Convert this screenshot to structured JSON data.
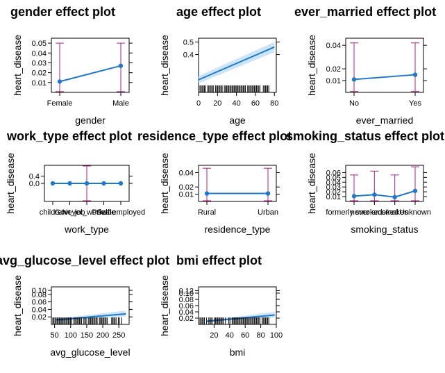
{
  "figure": {
    "ylabel": "heart_disease",
    "colors": {
      "line": "#1f78c9",
      "band": "#cce5fa",
      "error_bar": "#b0207f",
      "rug": "#000000"
    }
  },
  "chart_data": [
    {
      "type": "line",
      "title": "gender effect plot",
      "xlabel": "gender",
      "ylabel": "heart_disease",
      "x_scale": "categorical",
      "categories": [
        "Female",
        "Male"
      ],
      "values": [
        0.011,
        0.027
      ],
      "ci_low": [
        0.0008,
        0.0008
      ],
      "ci_high": [
        0.05,
        0.05
      ],
      "uncertainty": "error_bars",
      "yticks": [
        "0.01",
        "0.02",
        "0.03",
        "0.04",
        "0.05"
      ],
      "ylim": [
        0,
        0.055
      ]
    },
    {
      "type": "line",
      "title": "age effect plot",
      "xlabel": "age",
      "ylabel": "heart_disease",
      "x_scale": "continuous",
      "x": [
        0,
        80
      ],
      "values": [
        0.2,
        0.46
      ],
      "ci_low": [
        0.17,
        0.42
      ],
      "ci_high": [
        0.23,
        0.5
      ],
      "uncertainty": "band",
      "rug": true,
      "xlim": [
        0,
        82
      ],
      "xticks": [
        "0",
        "20",
        "40",
        "60",
        "80"
      ],
      "yticks": [
        "0.4",
        "0.5"
      ],
      "ylim": [
        0.1,
        0.53
      ]
    },
    {
      "type": "line",
      "title": "ever_married effect plot",
      "xlabel": "ever_married",
      "ylabel": "heart_disease",
      "x_scale": "categorical",
      "categories": [
        "No",
        "Yes"
      ],
      "values": [
        0.011,
        0.015
      ],
      "ci_low": [
        0.0008,
        0.0008
      ],
      "ci_high": [
        0.042,
        0.042
      ],
      "uncertainty": "error_bars",
      "yticks": [
        "0.01",
        "0.02",
        "0.04"
      ],
      "ylim": [
        0,
        0.046
      ]
    },
    {
      "type": "line",
      "title": "work_type effect plot",
      "xlabel": "work_type",
      "ylabel": "heart_disease",
      "x_scale": "categorical",
      "categories": [
        "children",
        "Govt_job",
        "Never_worked",
        "Private",
        "Self-employed"
      ],
      "values": [
        0.0,
        0.0,
        0.0,
        0.0,
        0.0
      ],
      "ci_low": [
        0.0,
        0.0,
        -1.0,
        0.0,
        0.0
      ],
      "ci_high": [
        0.0,
        0.0,
        1.0,
        0.0,
        0.0
      ],
      "uncertainty": "error_bars",
      "yticks": [
        "0.4",
        "0.0"
      ],
      "ylim": [
        -1.0,
        1.0
      ]
    },
    {
      "type": "line",
      "title": "residence_type effect plot",
      "xlabel": "residence_type",
      "ylabel": "heart_disease",
      "x_scale": "categorical",
      "categories": [
        "Rural",
        "Urban"
      ],
      "values": [
        0.011,
        0.011
      ],
      "ci_low": [
        0.0008,
        0.0008
      ],
      "ci_high": [
        0.046,
        0.046
      ],
      "uncertainty": "error_bars",
      "yticks": [
        "0.01",
        "0.02",
        "0.04"
      ],
      "ylim": [
        0,
        0.05
      ]
    },
    {
      "type": "line",
      "title": "smoking_status effect plot",
      "xlabel": "smoking_status",
      "ylabel": "heart_disease",
      "x_scale": "categorical",
      "categories": [
        "formerly smoked",
        "never smoked",
        "smokes",
        "Unknown"
      ],
      "values": [
        0.011,
        0.014,
        0.009,
        0.022
      ],
      "ci_low": [
        0.0008,
        0.0008,
        0.0008,
        0.0008
      ],
      "ci_high": [
        0.055,
        0.063,
        0.055,
        0.072
      ],
      "uncertainty": "error_bars",
      "yticks": [
        "0.01",
        "0.02",
        "0.03",
        "0.04",
        "0.05",
        "0.06"
      ],
      "ylim": [
        0,
        0.075
      ]
    },
    {
      "type": "line",
      "title": "avg_glucose_level effect plot",
      "xlabel": "avg_glucose_level",
      "ylabel": "heart_disease",
      "x_scale": "continuous",
      "x": [
        55,
        272
      ],
      "values": [
        0.012,
        0.028
      ],
      "ci_low": [
        0.009,
        0.021
      ],
      "ci_high": [
        0.015,
        0.037
      ],
      "uncertainty": "band",
      "rug": true,
      "xlim": [
        40,
        282
      ],
      "xticks": [
        "50",
        "100",
        "150",
        "200",
        "250"
      ],
      "yticks": [
        "0.02",
        "0.04",
        "0.06",
        "0.08",
        "0.10"
      ],
      "ylim": [
        0,
        0.1
      ]
    },
    {
      "type": "line",
      "title": "bmi effect plot",
      "xlabel": "bmi",
      "ylabel": "heart_disease",
      "x_scale": "continuous",
      "x": [
        10,
        98
      ],
      "values": [
        0.01,
        0.03
      ],
      "ci_low": [
        0.007,
        0.022
      ],
      "ci_high": [
        0.013,
        0.04
      ],
      "uncertainty": "band",
      "rug": true,
      "xlim": [
        0,
        100
      ],
      "xticks": [
        "20",
        "40",
        "60",
        "80",
        "100"
      ],
      "yticks": [
        "0.02",
        "0.04",
        "0.06",
        "0.08",
        "0.10",
        "0.12"
      ],
      "ylim": [
        0,
        0.12
      ]
    }
  ]
}
